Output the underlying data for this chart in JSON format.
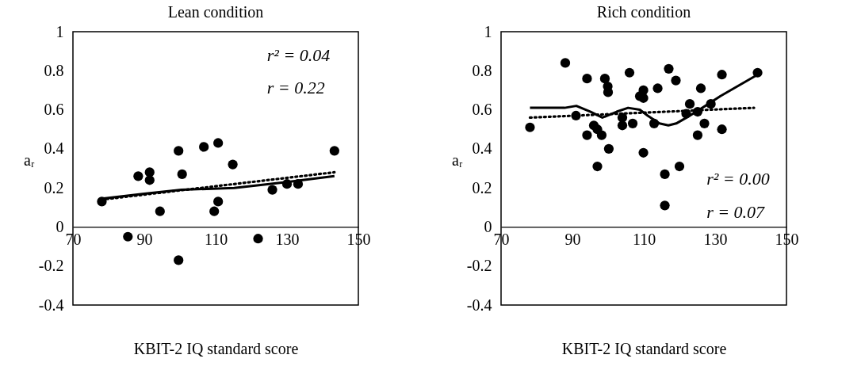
{
  "chart_data": [
    {
      "type": "scatter",
      "title": "Lean condition",
      "xlabel": "KBIT-2 IQ standard score",
      "ylabel": "aᵣ",
      "xlim": [
        70,
        150
      ],
      "xticks": [
        70,
        90,
        110,
        130,
        150
      ],
      "ylim": [
        -0.4,
        1
      ],
      "yticks": [
        -0.4,
        -0.2,
        0,
        0.2,
        0.4,
        0.6,
        0.8,
        1
      ],
      "grid": false,
      "annotations": [
        "r² = 0.04",
        "r = 0.22"
      ],
      "series": [
        {
          "marker": "circle",
          "color": "#000000",
          "x": [
            78.1,
            85.4,
            88.3,
            91.5,
            91.5,
            94.4,
            99.6,
            99.6,
            100.6,
            106.7,
            109.6,
            110.7,
            110.7,
            114.8,
            121.9,
            125.9,
            130,
            133.1,
            143.3
          ],
          "values": [
            0.13,
            -0.05,
            0.26,
            0.28,
            0.24,
            0.08,
            0.39,
            -0.17,
            0.27,
            0.41,
            0.08,
            0.43,
            0.13,
            0.32,
            -0.06,
            0.19,
            0.22,
            0.22,
            0.39
          ]
        },
        {
          "type": "line",
          "line_style": "solid",
          "color": "#000000",
          "x": [
            78.1,
            90,
            100.4,
            115.2,
            130,
            143.3
          ],
          "values": [
            0.145,
            0.17,
            0.19,
            0.2,
            0.23,
            0.26
          ]
        },
        {
          "type": "line",
          "line_style": "dotted",
          "color": "#000000",
          "x": [
            78.1,
            143.3
          ],
          "values": [
            0.14,
            0.28
          ]
        }
      ]
    },
    {
      "type": "scatter",
      "title": "Rich condition",
      "xlabel": "KBIT-2 IQ standard score",
      "ylabel": "aᵣ",
      "xlim": [
        70,
        150
      ],
      "xticks": [
        70,
        90,
        110,
        130,
        150
      ],
      "ylim": [
        -0.4,
        1
      ],
      "yticks": [
        -0.4,
        -0.2,
        0,
        0.2,
        0.4,
        0.6,
        0.8,
        1
      ],
      "grid": false,
      "annotations": [
        "r² = 0.00",
        "r = 0.07"
      ],
      "series": [
        {
          "marker": "circle",
          "color": "#000000",
          "x": [
            78.1,
            88.0,
            91.0,
            94.1,
            94.1,
            96.0,
            97.0,
            97.0,
            98.2,
            99.1,
            99.9,
            100.0,
            100.2,
            104.0,
            104.0,
            106.0,
            106.9,
            108.9,
            109.9,
            109.9,
            109.9,
            112.9,
            113.9,
            115.9,
            115.9,
            117.0,
            119.0,
            120.0,
            121.9,
            122.9,
            125.1,
            125.1,
            126.0,
            127.0,
            128.8,
            131.9,
            131.9,
            141.9
          ],
          "values": [
            0.51,
            0.84,
            0.57,
            0.76,
            0.47,
            0.52,
            0.5,
            0.31,
            0.47,
            0.76,
            0.72,
            0.69,
            0.4,
            0.56,
            0.52,
            0.79,
            0.53,
            0.67,
            0.7,
            0.66,
            0.38,
            0.53,
            0.71,
            0.27,
            0.11,
            0.81,
            0.75,
            0.31,
            0.58,
            0.63,
            0.59,
            0.47,
            0.71,
            0.53,
            0.63,
            0.78,
            0.5,
            0.79
          ]
        },
        {
          "type": "line",
          "line_style": "solid",
          "color": "#000000",
          "x": [
            78.1,
            87.8,
            91.1,
            95.1,
            98.4,
            102.4,
            105.6,
            108.9,
            111.1,
            114.4,
            116.9,
            119.1,
            122.0,
            126.4,
            131.5,
            141.9
          ],
          "values": [
            0.61,
            0.61,
            0.62,
            0.59,
            0.56,
            0.59,
            0.61,
            0.6,
            0.57,
            0.53,
            0.52,
            0.53,
            0.56,
            0.61,
            0.67,
            0.78
          ]
        },
        {
          "type": "line",
          "line_style": "dotted",
          "color": "#000000",
          "x": [
            78.1,
            140.9
          ],
          "values": [
            0.56,
            0.61
          ]
        }
      ]
    }
  ]
}
